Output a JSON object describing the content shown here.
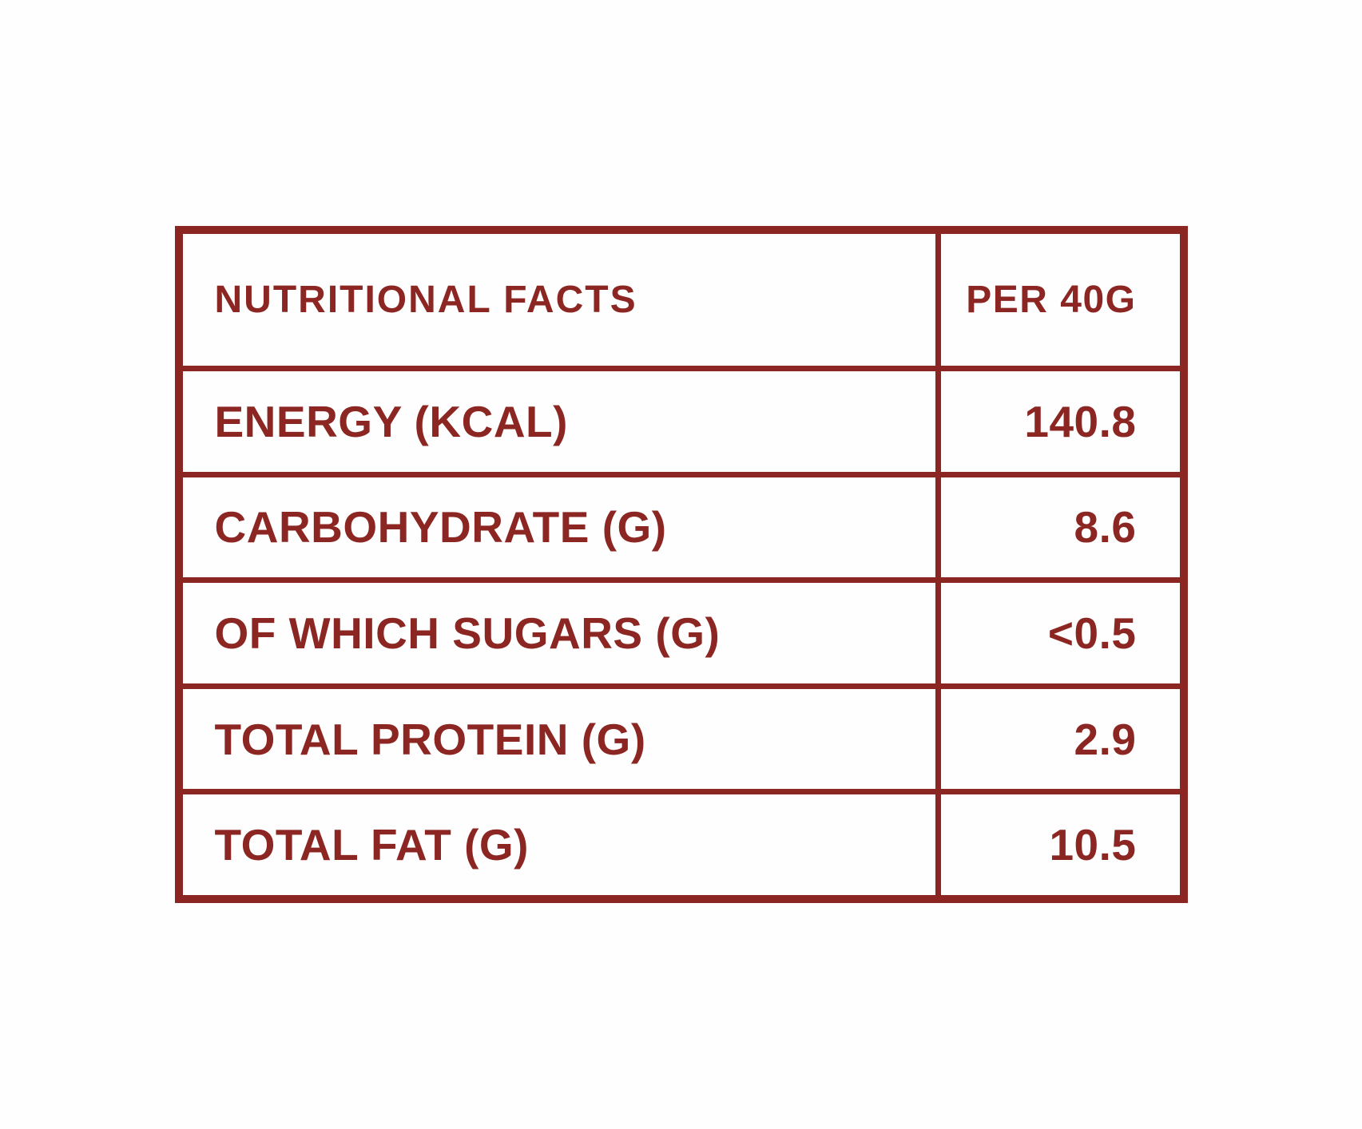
{
  "colors": {
    "accent_red": "#8c2623",
    "background": "#fefefe"
  },
  "table": {
    "header": {
      "label": "NUTRITIONAL FACTS",
      "value": "PER 40G"
    },
    "rows": [
      {
        "label": "ENERGY (KCAL)",
        "value": "140.8"
      },
      {
        "label": "CARBOHYDRATE (G)",
        "value": "8.6"
      },
      {
        "label": "OF WHICH SUGARS (G)",
        "value": "<0.5"
      },
      {
        "label": "TOTAL PROTEIN (G)",
        "value": "2.9"
      },
      {
        "label": "TOTAL FAT (G)",
        "value": "10.5"
      }
    ]
  }
}
